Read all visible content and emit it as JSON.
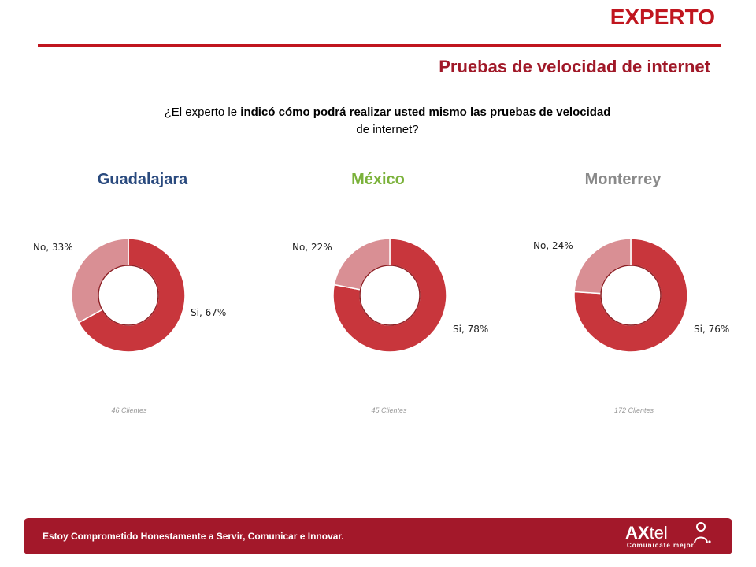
{
  "header": {
    "title": "EXPERTO",
    "section_title": "Pruebas de velocidad de internet",
    "question_part1": "¿El experto le ",
    "question_part2": "indicó cómo podrá realizar usted mismo las pruebas de velocidad",
    "question_part3": "de internet?"
  },
  "chart_data": [
    {
      "type": "pie",
      "title": "Guadalajara",
      "categories": [
        "Si",
        "No"
      ],
      "values": [
        67,
        33
      ],
      "labels": [
        "Si, 67%",
        "No, 33%"
      ],
      "note": "46 Clientes",
      "colors": [
        "#c8363c",
        "#d98f94"
      ]
    },
    {
      "type": "pie",
      "title": "México",
      "categories": [
        "Si",
        "No"
      ],
      "values": [
        78,
        22
      ],
      "labels": [
        "Si, 78%",
        "No, 22%"
      ],
      "note": "45 Clientes",
      "colors": [
        "#c8363c",
        "#d98f94"
      ]
    },
    {
      "type": "pie",
      "title": "Monterrey",
      "categories": [
        "Si",
        "No"
      ],
      "values": [
        76,
        24
      ],
      "labels": [
        "Si, 76%",
        "No, 24%"
      ],
      "note": "172 Clientes",
      "colors": [
        "#c8363c",
        "#d98f94"
      ]
    }
  ],
  "footer": {
    "slogan": "Estoy Comprometido Honestamente a Servir, Comunicar e Innovar.",
    "logo_word_bold": "AX",
    "logo_word_thin": "tel",
    "logo_tagline": "Comunicate mejor.",
    "logo_icon": "person-icon"
  },
  "colors": {
    "accent": "#c0161f",
    "footer_bg": "#a3182a",
    "si_slice": "#c8363c",
    "no_slice": "#d98f94"
  }
}
